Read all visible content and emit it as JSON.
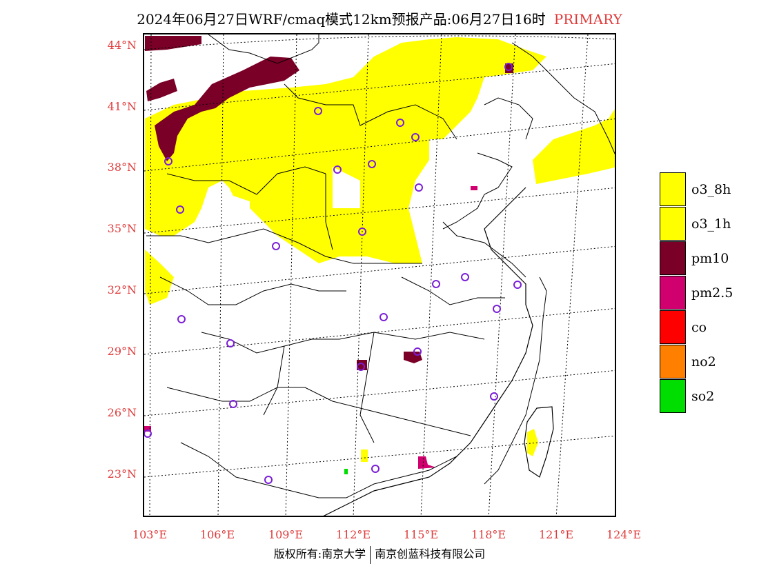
{
  "title": {
    "main": "2024年06月27日WRF/cmaq模式12km预报产品:06月27日16时",
    "tag": "PRIMARY"
  },
  "colors": {
    "o3_8h": "#ffff00",
    "o3_1h": "#ffff00",
    "pm10": "#7a0028",
    "pm25": "#d0006e",
    "co": "#ff0000",
    "no2": "#ff8000",
    "so2": "#00dd00",
    "axis_label": "#e03a3a",
    "station": "#7a1fd6"
  },
  "lat_labels": [
    "44°N",
    "41°N",
    "38°N",
    "35°N",
    "32°N",
    "29°N",
    "26°N",
    "23°N"
  ],
  "lon_labels": [
    "103°E",
    "106°E",
    "109°E",
    "112°E",
    "115°E",
    "118°E",
    "121°E",
    "124°E"
  ],
  "legend": [
    {
      "label": "o3_8h",
      "color": "#ffff00"
    },
    {
      "label": "o3_1h",
      "color": "#ffff00"
    },
    {
      "label": "pm10",
      "color": "#7a0028"
    },
    {
      "label": "pm2.5",
      "color": "#d0006e"
    },
    {
      "label": "co",
      "color": "#ff0000"
    },
    {
      "label": "no2",
      "color": "#ff8000"
    },
    {
      "label": "so2",
      "color": "#00dd00"
    }
  ],
  "copyright": {
    "left": "版权所有:南京大学",
    "right": "南京创蓝科技有限公司"
  }
}
